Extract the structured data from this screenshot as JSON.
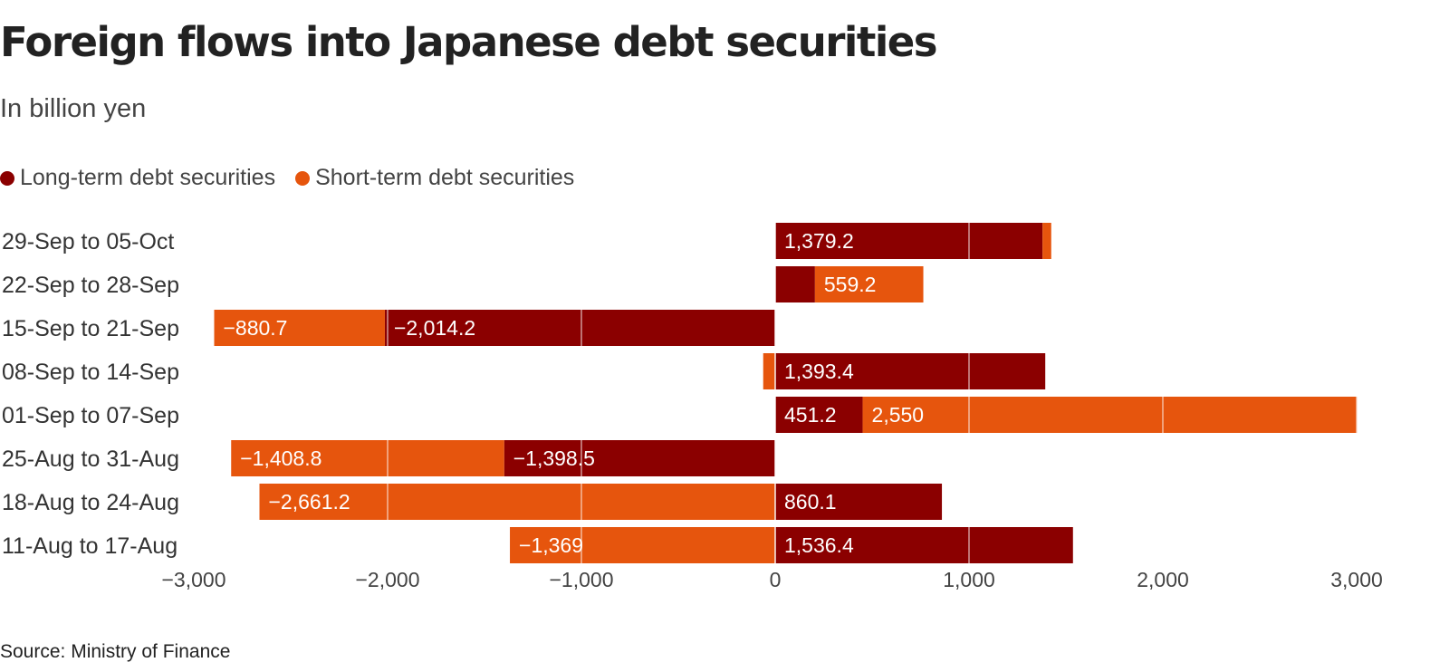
{
  "title": "Foreign flows into Japanese debt securities",
  "subtitle": "In billion yen",
  "source": "Source: Ministry of Finance",
  "colors": {
    "long_term": "#8b0000",
    "short_term": "#e6550d"
  },
  "chart_data": {
    "type": "bar",
    "orientation": "horizontal",
    "stacking": "diverging",
    "title": "Foreign flows into Japanese debt securities",
    "subtitle": "In billion yen",
    "xlim": [
      -3000,
      3000
    ],
    "xticks": [
      -3000,
      -2000,
      -1000,
      0,
      1000,
      2000,
      3000
    ],
    "xtick_labels": [
      "−3,000",
      "−2,000",
      "−1,000",
      "0",
      "1,000",
      "2,000",
      "3,000"
    ],
    "grid": true,
    "legend_position": "top-left",
    "categories": [
      "29-Sep to 05-Oct",
      "22-Sep to 28-Sep",
      "15-Sep to 21-Sep",
      "08-Sep to 14-Sep",
      "01-Sep to 07-Sep",
      "25-Aug to 31-Aug",
      "18-Aug to 24-Aug",
      "11-Aug to 17-Aug"
    ],
    "series": [
      {
        "name": "Long-term debt securities",
        "color": "#8b0000",
        "values": [
          1379.2,
          205,
          -2014.2,
          1393.4,
          451.2,
          -1398.5,
          860.1,
          1536.4
        ],
        "labels": [
          "1,379.2",
          "",
          "−2,014.2",
          "1,393.4",
          "451.2",
          "−1,398.5",
          "860.1",
          "1,536.4"
        ]
      },
      {
        "name": "Short-term debt securities",
        "color": "#e6550d",
        "values": [
          45,
          559.2,
          -880.7,
          -62,
          2550,
          -1408.8,
          -2661.2,
          -1369
        ],
        "labels": [
          "",
          "559.2",
          "−880.7",
          "",
          "2,550",
          "−1,408.8",
          "−2,661.2",
          "−1,369"
        ]
      }
    ]
  }
}
